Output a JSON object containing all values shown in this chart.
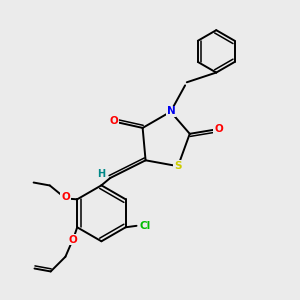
{
  "bg_color": "#ebebeb",
  "bond_color": "#000000",
  "atom_colors": {
    "N": "#0000ee",
    "S": "#cccc00",
    "O": "#ff0000",
    "Cl": "#00bb00",
    "H": "#008888",
    "C": "#000000"
  }
}
